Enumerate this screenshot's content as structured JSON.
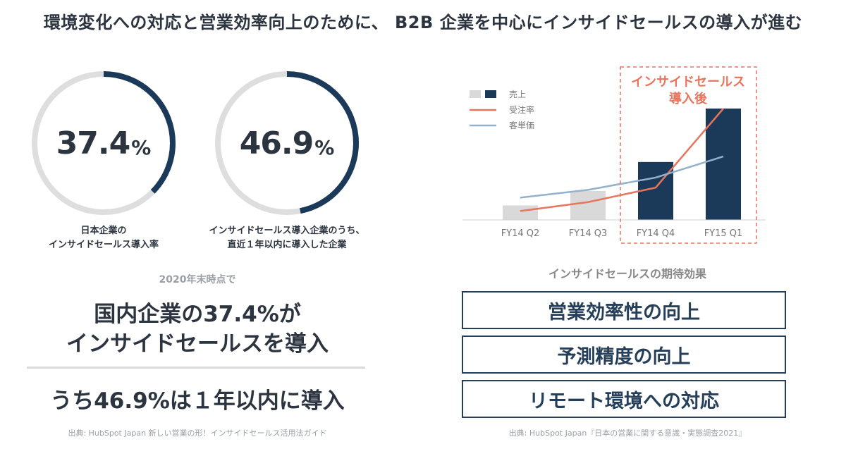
{
  "title": "環境変化への対応と営業効率向上のために、 B2B 企業を中心にインサイドセールスの導入が進む",
  "colors": {
    "navy": "#1b3a5a",
    "track": "#dedede",
    "orange": "#e8745c",
    "steel": "#92b1cc",
    "light_bar": "#d9d9d9",
    "text": "#2c3440"
  },
  "donuts": [
    {
      "value": 37.4,
      "number": "37.4",
      "unit": "%",
      "label_line1": "日本企業の",
      "label_line2": "インサイドセールス導入率"
    },
    {
      "value": 46.9,
      "number": "46.9",
      "unit": "%",
      "label_line1": "インサイドセールス導入企業のうち、",
      "label_line2": "直近１年以内に導入した企業"
    }
  ],
  "summary": {
    "subcaption": "2020年末時点で",
    "headline_line1": "国内企業の37.4%が",
    "headline_line2": "インサイドセールスを導入",
    "headline_line3": "うち46.9%は１年以内に導入"
  },
  "left_source": "出典: HubSpot Japan 新しい営業の形！インサイドセールス活用法ガイド",
  "chart_data": {
    "type": "bar",
    "categories": [
      "FY14 Q2",
      "FY14 Q3",
      "FY14 Q4",
      "FY15 Q1"
    ],
    "ylim": [
      0,
      100
    ],
    "series": [
      {
        "name": "売上",
        "kind": "bar",
        "values": [
          13,
          26,
          52,
          100
        ]
      },
      {
        "name": "受注率",
        "kind": "line",
        "values": [
          8,
          16,
          29,
          100
        ]
      },
      {
        "name": "客単価",
        "kind": "line",
        "values": [
          20,
          27,
          38,
          57
        ]
      }
    ],
    "annotation": {
      "line1": "インサイドセールス",
      "line2": "導入後"
    }
  },
  "effects": {
    "title": "インサイドセールスの期待効果",
    "items": [
      "営業効率性の向上",
      "予測精度の向上",
      "リモート環境への対応"
    ]
  },
  "right_source": "出典: HubSpot Japan『日本の営業に関する意識・実態調査2021』"
}
